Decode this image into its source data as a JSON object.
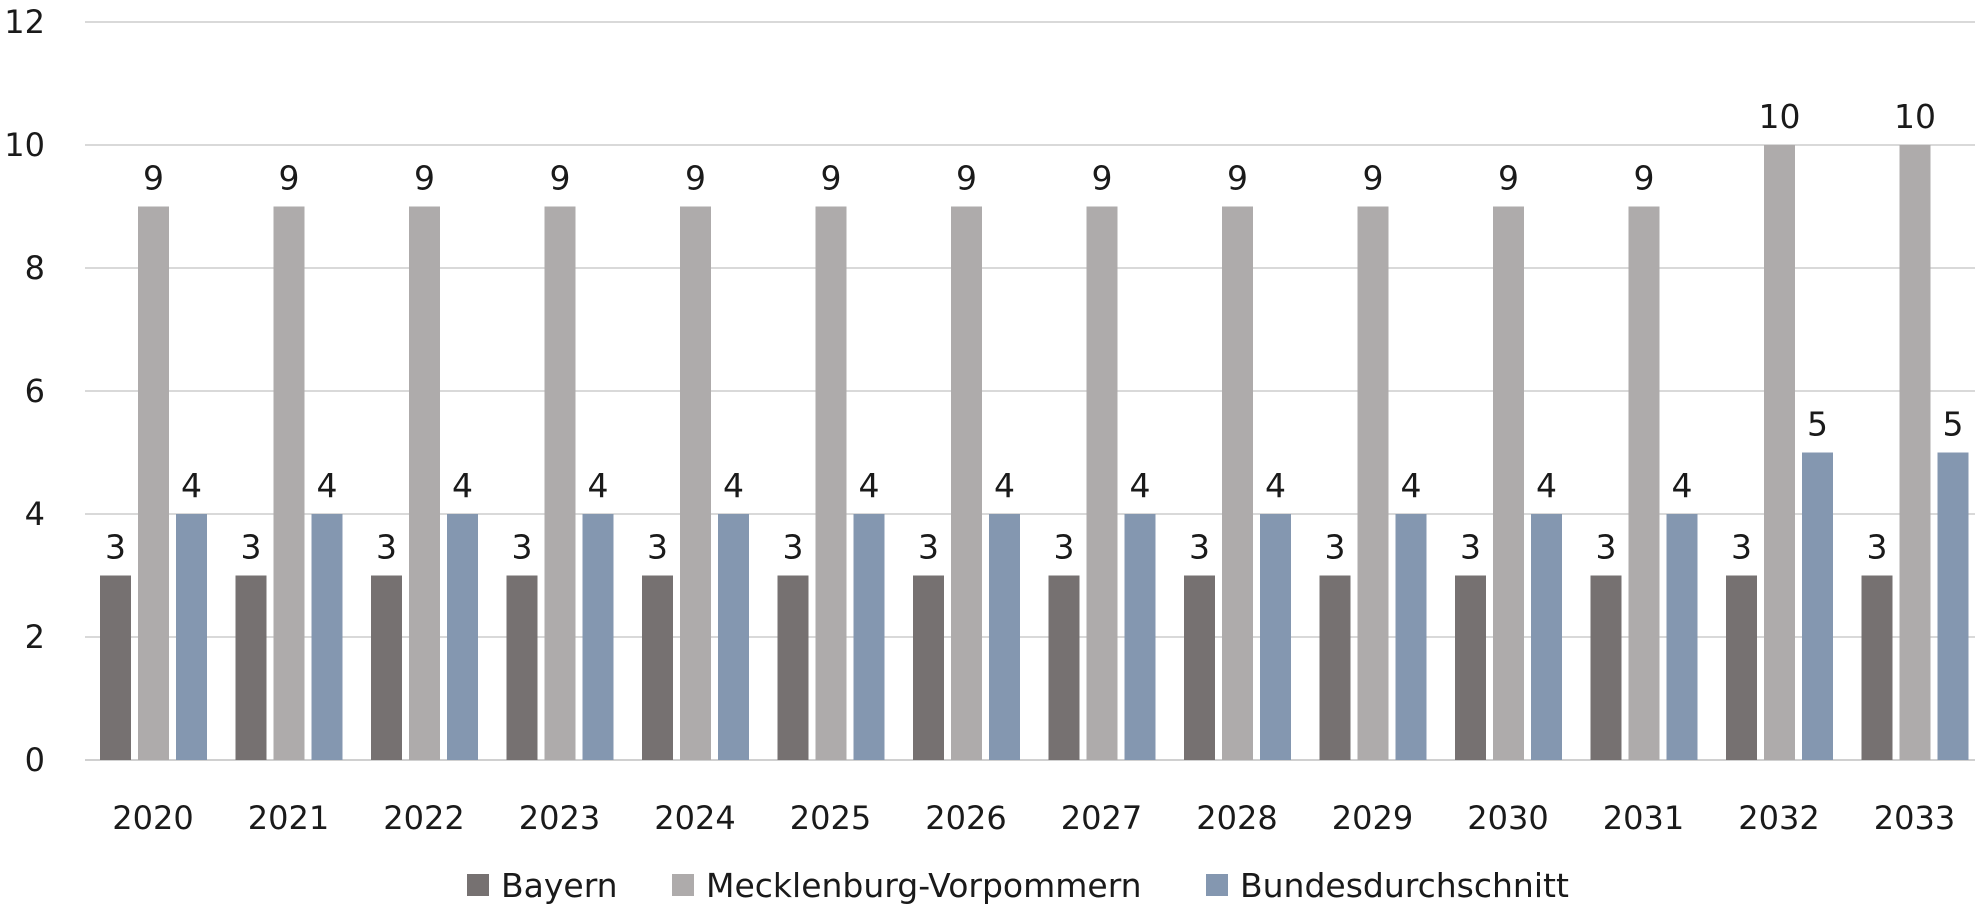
{
  "chart_data": {
    "type": "bar",
    "title": "",
    "xlabel": "",
    "ylabel": "",
    "ylim": [
      0,
      12
    ],
    "yticks": [
      0,
      2,
      4,
      6,
      8,
      10,
      12
    ],
    "grid": true,
    "legend_position": "bottom-center",
    "categories": [
      "2020",
      "2021",
      "2022",
      "2023",
      "2024",
      "2025",
      "2026",
      "2027",
      "2028",
      "2029",
      "2030",
      "2031",
      "2032",
      "2033"
    ],
    "series": [
      {
        "name": "Bayern",
        "color": "#767171",
        "values": [
          3,
          3,
          3,
          3,
          3,
          3,
          3,
          3,
          3,
          3,
          3,
          3,
          3,
          3
        ]
      },
      {
        "name": "Mecklenburg-Vorpommern",
        "color": "#aeabab",
        "values": [
          9,
          9,
          9,
          9,
          9,
          9,
          9,
          9,
          9,
          9,
          9,
          9,
          10,
          10
        ]
      },
      {
        "name": "Bundesdurchschnitt",
        "color": "#8497b0",
        "values": [
          4,
          4,
          4,
          4,
          4,
          4,
          4,
          4,
          4,
          4,
          4,
          4,
          5,
          5
        ]
      }
    ]
  }
}
